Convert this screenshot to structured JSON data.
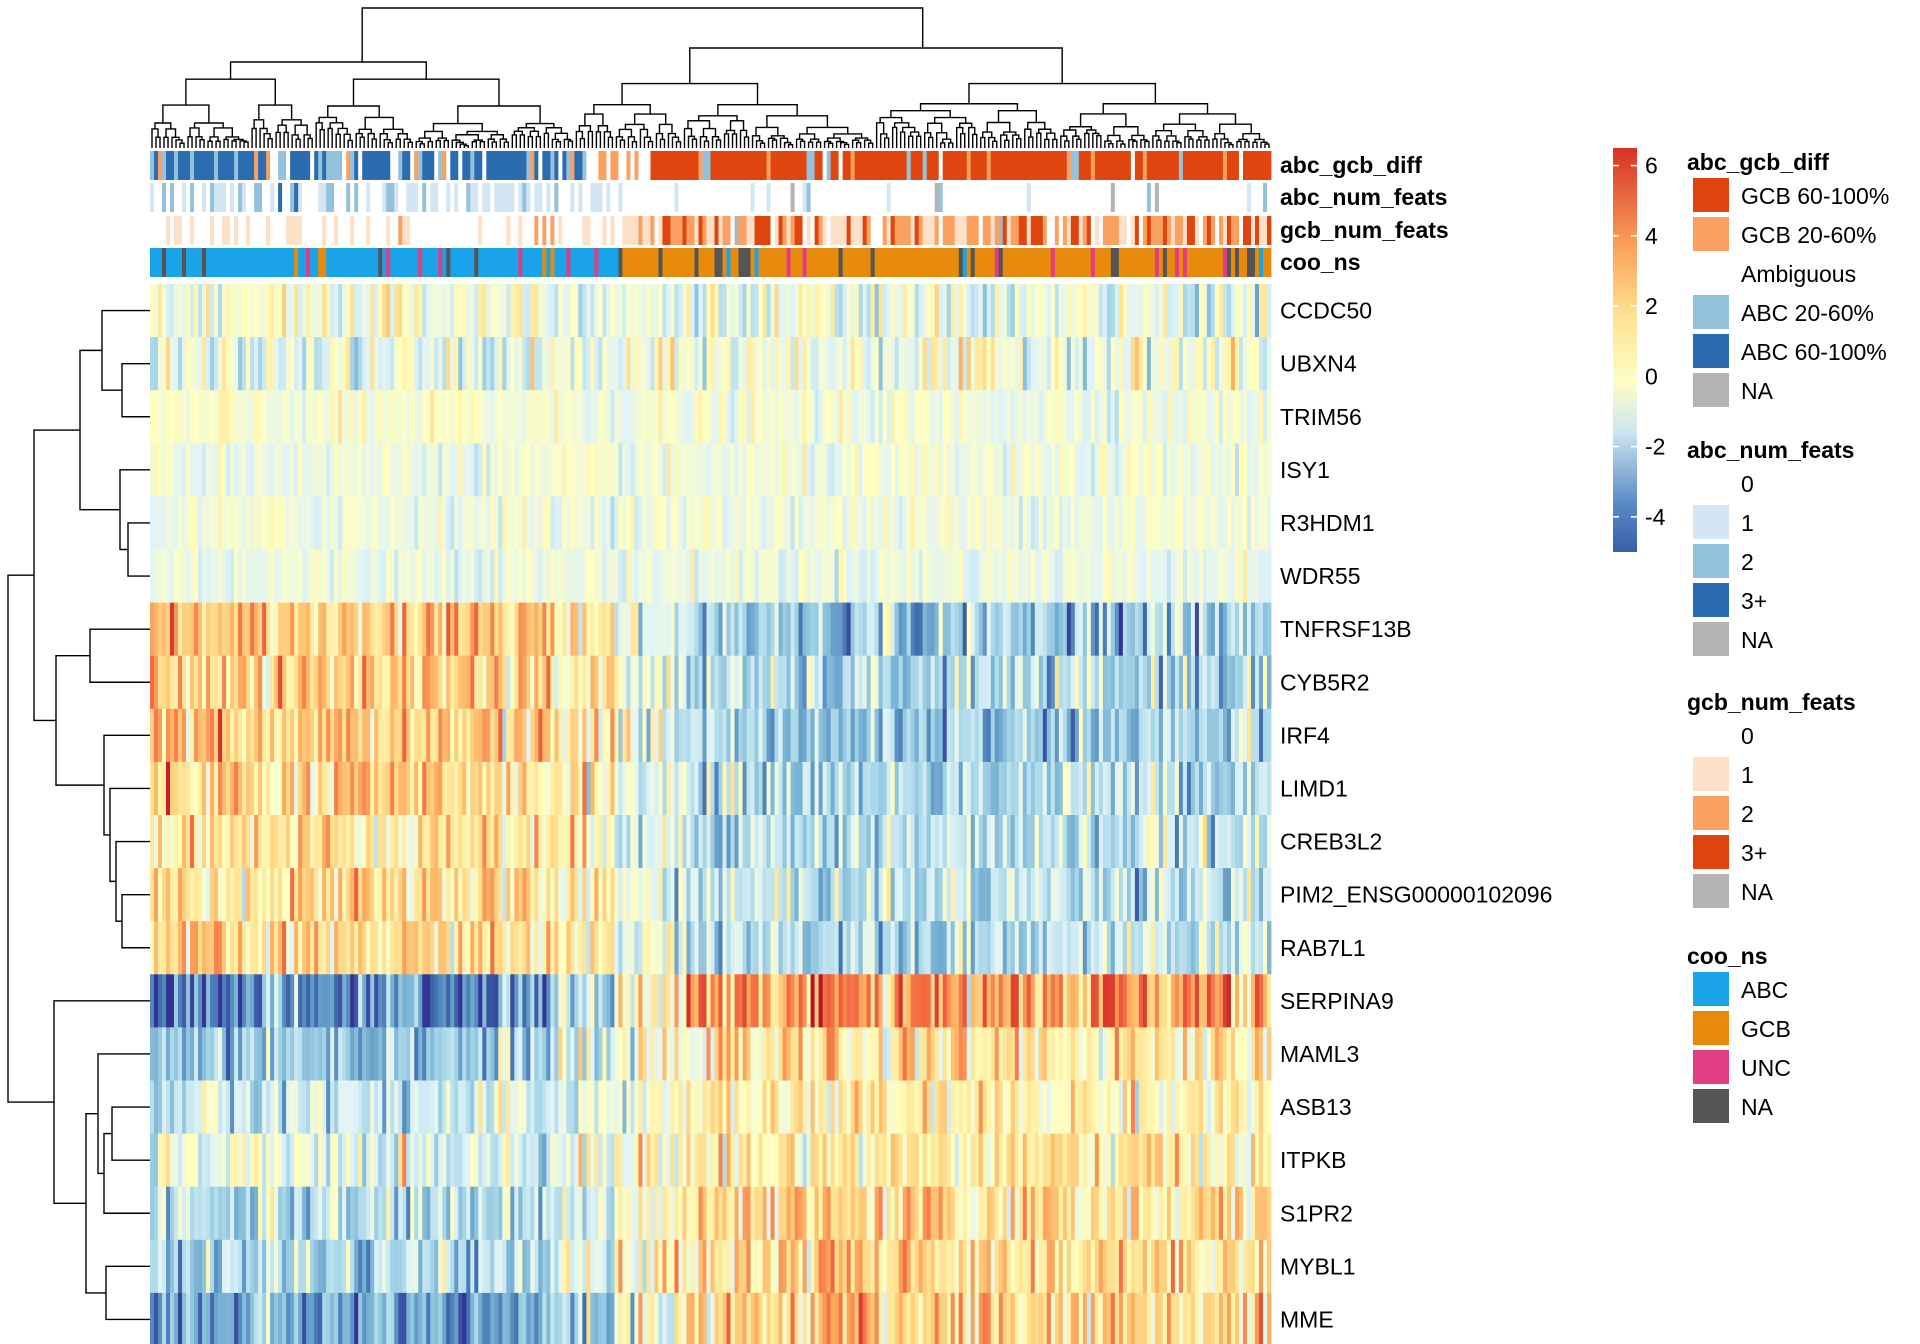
{
  "colors": {
    "heat": [
      "#313695",
      "#4575b4",
      "#74add1",
      "#abd9e9",
      "#e0f3f8",
      "#ffffbf",
      "#fee090",
      "#fdae61",
      "#f46d43",
      "#d73027",
      "#a50026"
    ],
    "abc_gcb_diff": {
      "GCB 60-100%": "#e0450f",
      "GCB 20-60%": "#fca061",
      "Ambiguous": "#ffffff",
      "ABC 20-60%": "#94c2dd",
      "ABC 60-100%": "#2b6cb0",
      "NA": "#b3b3b3"
    },
    "abc_num_feats": {
      "0": "#ffffff",
      "1": "#d4e5f4",
      "2": "#94c2dd",
      "3+": "#2b6cb0",
      "NA": "#b3b3b3"
    },
    "gcb_num_feats": {
      "0": "#ffffff",
      "1": "#fde0c8",
      "2": "#fca061",
      "3+": "#e0450f",
      "NA": "#b3b3b3"
    },
    "coo_ns": {
      "ABC": "#1aa3e8",
      "GCB": "#e88a0c",
      "UNC": "#e03d82",
      "NA": "#555555"
    }
  },
  "chart_data": {
    "type": "heatmap",
    "n_samples": 280,
    "genes": [
      "CCDC50",
      "UBXN4",
      "TRIM56",
      "ISY1",
      "R3HDM1",
      "WDR55",
      "TNFRSF13B",
      "CYB5R2",
      "IRF4",
      "LIMD1",
      "CREB3L2",
      "PIM2_ENSG00000102096",
      "RAB7L1",
      "SERPINA9",
      "MAML3",
      "ASB13",
      "ITPKB",
      "S1PR2",
      "MYBL1",
      "MME"
    ],
    "gene_group_means": {
      "description_free": true,
      "left_block_end": 0.42,
      "CCDC50": [
        0.6,
        -0.2
      ],
      "UBXN4": [
        -0.3,
        0.3
      ],
      "TRIM56": [
        0.4,
        0.2
      ],
      "ISY1": [
        0.1,
        0.1
      ],
      "R3HDM1": [
        0.2,
        0.2
      ],
      "WDR55": [
        0.1,
        0.1
      ],
      "TNFRSF13B": [
        2.8,
        -2.2
      ],
      "CYB5R2": [
        2.6,
        -1.8
      ],
      "IRF4": [
        2.6,
        -2.2
      ],
      "LIMD1": [
        2.2,
        -1.6
      ],
      "CREB3L2": [
        2.0,
        -1.4
      ],
      "PIM2_ENSG00000102096": [
        2.0,
        -1.2
      ],
      "RAB7L1": [
        2.0,
        -1.3
      ],
      "SERPINA9": [
        -4.0,
        3.8
      ],
      "MAML3": [
        -2.0,
        1.8
      ],
      "ASB13": [
        -1.0,
        1.3
      ],
      "ITPKB": [
        -0.4,
        1.5
      ],
      "S1PR2": [
        -1.6,
        2.0
      ],
      "MYBL1": [
        -1.8,
        2.4
      ],
      "MME": [
        -3.2,
        2.6
      ]
    },
    "scale_ticks": [
      6,
      4,
      2,
      0,
      -2,
      -4
    ],
    "scale_range": [
      -5,
      6.5
    ],
    "annotation_rows": [
      "abc_gcb_diff",
      "abc_num_feats",
      "gcb_num_feats",
      "coo_ns"
    ]
  },
  "legends": [
    {
      "title": "abc_gcb_diff",
      "key": "abc_gcb_diff",
      "items": [
        "GCB 60-100%",
        "GCB 20-60%",
        "Ambiguous",
        "ABC 20-60%",
        "ABC 60-100%",
        "NA"
      ]
    },
    {
      "title": "abc_num_feats",
      "key": "abc_num_feats",
      "items": [
        "0",
        "1",
        "2",
        "3+",
        "NA"
      ]
    },
    {
      "title": "gcb_num_feats",
      "key": "gcb_num_feats",
      "items": [
        "0",
        "1",
        "2",
        "3+",
        "NA"
      ]
    },
    {
      "title": "coo_ns",
      "key": "coo_ns",
      "items": [
        "ABC",
        "GCB",
        "UNC",
        "NA"
      ]
    }
  ]
}
